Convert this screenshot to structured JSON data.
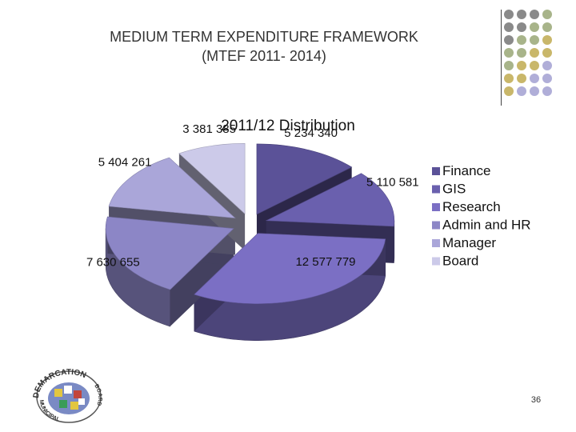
{
  "slide": {
    "title_line1": "MEDIUM TERM EXPENDITURE FRAMEWORK",
    "title_line2": "(MTEF 2011- 2014)",
    "page_number": "36"
  },
  "logo": {
    "top_text": "DEMARCATION",
    "right_text": "BOARD",
    "bottom_text": "MUNICIPAL"
  },
  "decor": {
    "dot_colors": [
      "#8a8a8a",
      "#a8b48a",
      "#c9b76a",
      "#b0aed8"
    ]
  },
  "chart_data": {
    "type": "pie",
    "title": "2011/12 Distribution",
    "legend_position": "right",
    "slices": [
      {
        "name": "Finance",
        "value": 5234340,
        "label": "5 234 340",
        "color": "#5b5298"
      },
      {
        "name": "GIS",
        "value": 5110581,
        "label": "5 110 581",
        "color": "#6a60ae"
      },
      {
        "name": "Research",
        "value": 12577779,
        "label": "12 577 779",
        "color": "#7b6fc4"
      },
      {
        "name": "Admin and HR",
        "value": 7630655,
        "label": "7 630 655",
        "color": "#8c86c6"
      },
      {
        "name": "Manager",
        "value": 5404261,
        "label": "5 404 261",
        "color": "#aaa6d9"
      },
      {
        "name": "Board",
        "value": 3381385,
        "label": "3 381 385",
        "color": "#cccae9"
      }
    ]
  }
}
